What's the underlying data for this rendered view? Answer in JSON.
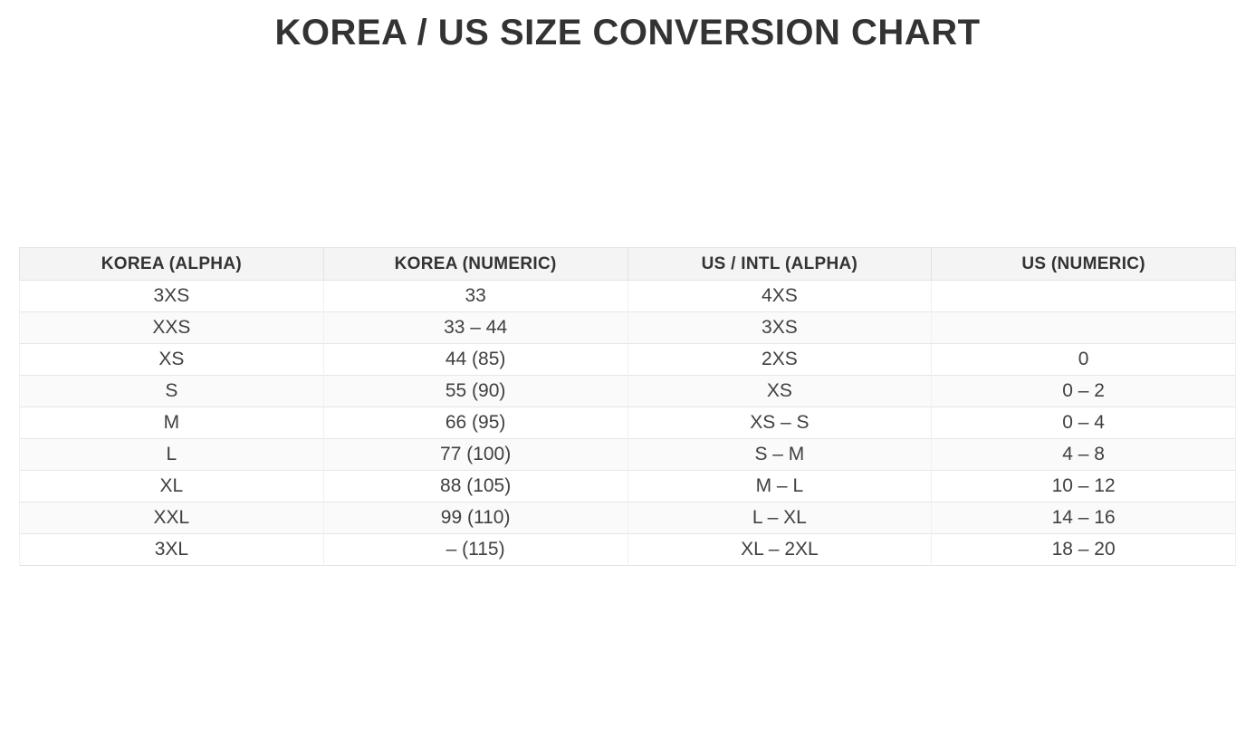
{
  "page": {
    "title": "KOREA / US SIZE CONVERSION CHART"
  },
  "colors": {
    "title_text": "#333333",
    "header_background": "#f4f4f4",
    "row_stripe_background": "#fafafa",
    "cell_text": "#404040",
    "border": "#e3e3e3"
  },
  "table": {
    "headers": [
      "KOREA (ALPHA)",
      "KOREA (NUMERIC)",
      "US / INTL (ALPHA)",
      "US (NUMERIC)"
    ],
    "rows": [
      [
        "3XS",
        "33",
        "4XS",
        ""
      ],
      [
        "XXS",
        "33 – 44",
        "3XS",
        ""
      ],
      [
        "XS",
        "44 (85)",
        "2XS",
        "0"
      ],
      [
        "S",
        "55 (90)",
        "XS",
        "0 – 2"
      ],
      [
        "M",
        "66 (95)",
        "XS – S",
        "0 – 4"
      ],
      [
        "L",
        "77 (100)",
        "S – M",
        "4 – 8"
      ],
      [
        "XL",
        "88 (105)",
        "M – L",
        "10 – 12"
      ],
      [
        "XXL",
        "99 (110)",
        "L – XL",
        "14 – 16"
      ],
      [
        "3XL",
        "– (115)",
        "XL – 2XL",
        "18 – 20"
      ]
    ]
  },
  "chart_data": {
    "type": "table",
    "title": "KOREA / US SIZE CONVERSION CHART",
    "columns": [
      "KOREA (ALPHA)",
      "KOREA (NUMERIC)",
      "US / INTL (ALPHA)",
      "US (NUMERIC)"
    ],
    "rows": [
      [
        "3XS",
        "33",
        "4XS",
        ""
      ],
      [
        "XXS",
        "33 – 44",
        "3XS",
        ""
      ],
      [
        "XS",
        "44 (85)",
        "2XS",
        "0"
      ],
      [
        "S",
        "55 (90)",
        "XS",
        "0 – 2"
      ],
      [
        "M",
        "66 (95)",
        "XS – S",
        "0 – 4"
      ],
      [
        "L",
        "77 (100)",
        "S – M",
        "4 – 8"
      ],
      [
        "XL",
        "88 (105)",
        "M – L",
        "10 – 12"
      ],
      [
        "XXL",
        "99 (110)",
        "L – XL",
        "14 – 16"
      ],
      [
        "3XL",
        "– (115)",
        "XL – 2XL",
        "18 – 20"
      ]
    ],
    "layout": {
      "striped_rows": true,
      "column_count": 4,
      "equal_column_widths": true,
      "header_style": "bold on light gray"
    }
  }
}
